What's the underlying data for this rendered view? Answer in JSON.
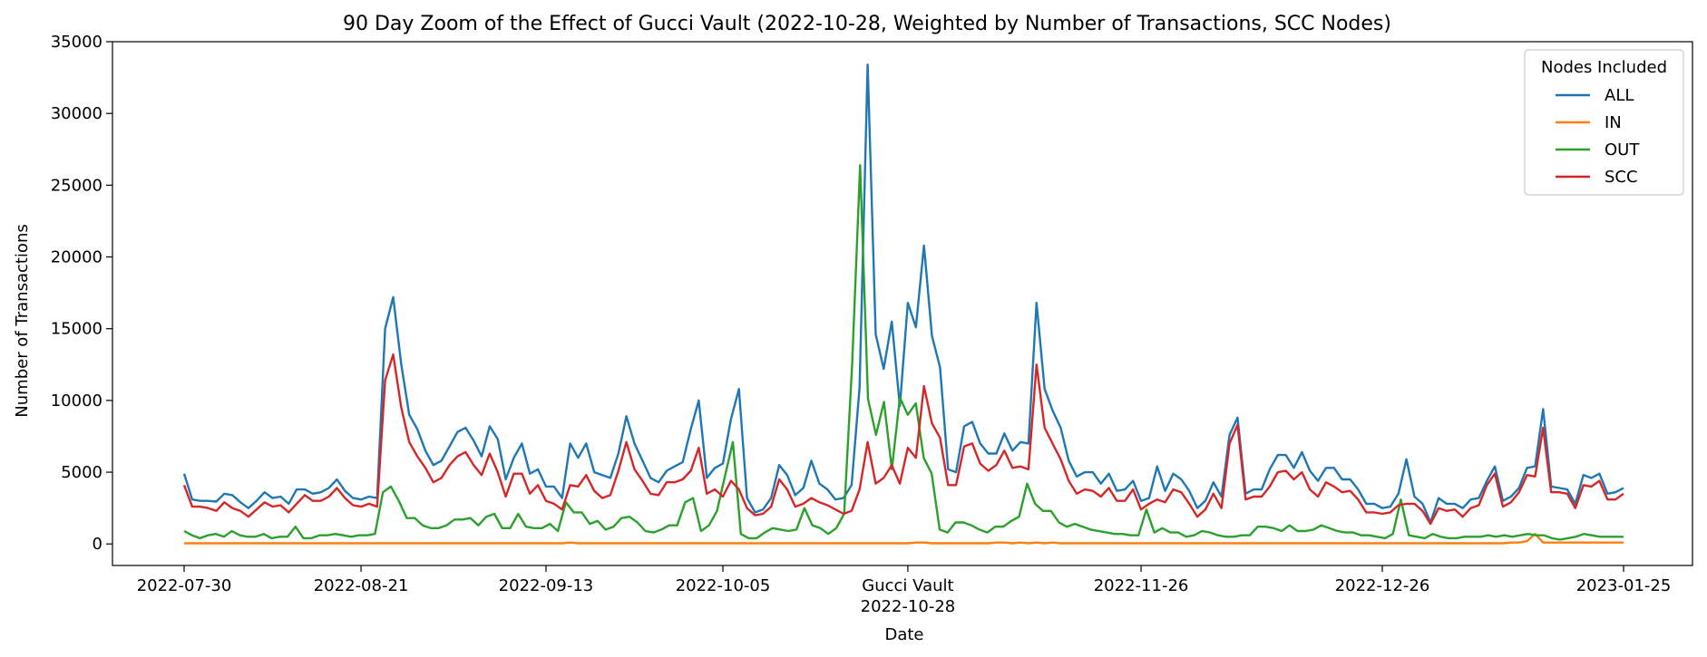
{
  "chart_data": {
    "type": "line",
    "title": "90 Day Zoom of the Effect of Gucci Vault (2022-10-28, Weighted by Number of Transactions, SCC Nodes)",
    "xlabel": "Date",
    "ylabel": "Number of Transactions",
    "ylim": [
      -1500,
      35000
    ],
    "yticks": [
      0,
      5000,
      10000,
      15000,
      20000,
      25000,
      30000,
      35000
    ],
    "x_start": "2022-07-30",
    "x_end": "2023-01-25",
    "xticks": [
      {
        "date": "2022-07-30",
        "label": "2022-07-30"
      },
      {
        "date": "2022-08-21",
        "label": "2022-08-21"
      },
      {
        "date": "2022-09-13",
        "label": "2022-09-13"
      },
      {
        "date": "2022-10-05",
        "label": "2022-10-05"
      },
      {
        "date": "2022-10-28",
        "label": "Gucci Vault",
        "label2": "2022-10-28"
      },
      {
        "date": "2022-11-26",
        "label": "2022-11-26"
      },
      {
        "date": "2022-12-26",
        "label": "2022-12-26"
      },
      {
        "date": "2023-01-25",
        "label": "2023-01-25"
      }
    ],
    "legend": {
      "title": "Nodes Included",
      "placement": "top-right"
    },
    "grid": false,
    "series": [
      {
        "name": "ALL",
        "color": "#1f77b4",
        "values": [
          4900,
          3100,
          3000,
          3000,
          2950,
          3500,
          3400,
          2900,
          2500,
          3000,
          3600,
          3200,
          3300,
          2800,
          3800,
          3800,
          3500,
          3600,
          3900,
          4500,
          3700,
          3200,
          3100,
          3300,
          3200,
          15000,
          17200,
          12500,
          9000,
          8000,
          6500,
          5500,
          5800,
          6800,
          7800,
          8100,
          7200,
          6100,
          8200,
          7300,
          4500,
          6000,
          7000,
          4900,
          5200,
          4000,
          4000,
          3200,
          7000,
          6000,
          7000,
          5000,
          4800,
          4600,
          6300,
          8900,
          7000,
          5800,
          4600,
          4300,
          5100,
          5400,
          5700,
          8000,
          10000,
          4600,
          5300,
          5600,
          8700,
          10800,
          3200,
          2200,
          2400,
          3200,
          5500,
          4800,
          3400,
          3900,
          5800,
          4200,
          3800,
          3100,
          3200,
          4100,
          10900,
          33400,
          14600,
          12200,
          15500,
          9600,
          16800,
          15100,
          20800,
          14500,
          12300,
          5200,
          5000,
          8200,
          8500,
          7000,
          6300,
          6300,
          7700,
          6500,
          7100,
          7000,
          16800,
          10800,
          9300,
          8100,
          5800,
          4700,
          5000,
          5000,
          4200,
          4900,
          3700,
          3800,
          4400,
          3000,
          3200,
          5400,
          3700,
          4900,
          4500,
          3700,
          2500,
          3000,
          4300,
          3300,
          7600,
          8800,
          3500,
          3800,
          3800,
          5200,
          6200,
          6200,
          5300,
          6400,
          5100,
          4400,
          5300,
          5300,
          4500,
          4500,
          3800,
          2800,
          2800,
          2500,
          2600,
          3500,
          5900,
          3300,
          2800,
          1500,
          3200,
          2800,
          2800,
          2500,
          3100,
          3200,
          4400,
          5400,
          3000,
          3300,
          3900,
          5300,
          5400,
          9400,
          4000,
          3900,
          3800,
          2800,
          4800,
          4600,
          4900,
          3500,
          3600,
          3900
        ]
      },
      {
        "name": "IN",
        "color": "#ff7f0e",
        "values": [
          50,
          50,
          50,
          50,
          50,
          50,
          50,
          50,
          50,
          50,
          50,
          50,
          50,
          50,
          50,
          50,
          50,
          50,
          50,
          50,
          50,
          50,
          50,
          50,
          50,
          50,
          50,
          50,
          50,
          50,
          50,
          50,
          50,
          50,
          50,
          50,
          50,
          50,
          50,
          50,
          50,
          50,
          50,
          50,
          50,
          50,
          50,
          50,
          100,
          50,
          50,
          50,
          50,
          50,
          50,
          50,
          50,
          50,
          50,
          50,
          50,
          50,
          50,
          50,
          50,
          50,
          50,
          50,
          50,
          50,
          50,
          50,
          50,
          50,
          50,
          50,
          50,
          50,
          50,
          50,
          50,
          50,
          50,
          50,
          50,
          50,
          50,
          50,
          50,
          50,
          50,
          100,
          100,
          50,
          50,
          50,
          50,
          50,
          50,
          50,
          50,
          100,
          100,
          50,
          100,
          50,
          100,
          50,
          100,
          50,
          50,
          50,
          50,
          50,
          50,
          50,
          50,
          50,
          50,
          50,
          50,
          50,
          50,
          50,
          50,
          50,
          50,
          50,
          50,
          50,
          50,
          50,
          50,
          50,
          50,
          50,
          50,
          50,
          50,
          50,
          50,
          50,
          50,
          50,
          50,
          50,
          50,
          50,
          50,
          50,
          50,
          50,
          50,
          50,
          50,
          50,
          50,
          50,
          50,
          50,
          50,
          50,
          50,
          50,
          50,
          100,
          100,
          200,
          700,
          100,
          100,
          100,
          100,
          100,
          100,
          100,
          100,
          100,
          100,
          100
        ]
      },
      {
        "name": "OUT",
        "color": "#2ca02c",
        "values": [
          900,
          600,
          400,
          600,
          700,
          500,
          900,
          600,
          500,
          500,
          700,
          400,
          500,
          500,
          1200,
          400,
          400,
          600,
          600,
          700,
          600,
          500,
          600,
          600,
          700,
          3600,
          4000,
          3000,
          1800,
          1800,
          1300,
          1100,
          1100,
          1300,
          1700,
          1700,
          1800,
          1300,
          1900,
          2100,
          1100,
          1100,
          2100,
          1200,
          1100,
          1100,
          1400,
          900,
          2900,
          2200,
          2200,
          1400,
          1600,
          1000,
          1200,
          1800,
          1900,
          1500,
          900,
          800,
          1000,
          1300,
          1300,
          2900,
          3200,
          900,
          1300,
          2300,
          4700,
          7100,
          700,
          400,
          400,
          800,
          1100,
          1000,
          900,
          1000,
          2500,
          1300,
          1100,
          700,
          1100,
          2100,
          12500,
          26400,
          10100,
          7600,
          9900,
          5200,
          10200,
          9000,
          9800,
          6000,
          4900,
          1000,
          800,
          1500,
          1500,
          1300,
          1000,
          800,
          1200,
          1200,
          1600,
          1900,
          4200,
          2800,
          2300,
          2300,
          1500,
          1200,
          1400,
          1200,
          1000,
          900,
          800,
          700,
          700,
          600,
          600,
          2400,
          800,
          1100,
          800,
          800,
          500,
          600,
          900,
          800,
          600,
          500,
          500,
          600,
          600,
          1200,
          1200,
          1100,
          900,
          1300,
          900,
          900,
          1000,
          1300,
          1100,
          900,
          800,
          800,
          600,
          600,
          500,
          400,
          700,
          3100,
          600,
          500,
          400,
          700,
          500,
          400,
          400,
          500,
          500,
          500,
          600,
          500,
          600,
          500,
          600,
          700,
          600,
          600,
          400,
          300,
          400,
          500,
          700,
          600,
          500,
          500,
          500,
          500
        ]
      },
      {
        "name": "SCC",
        "color": "#d62728",
        "values": [
          4100,
          2600,
          2600,
          2500,
          2300,
          2900,
          2500,
          2300,
          1900,
          2400,
          2900,
          2600,
          2700,
          2200,
          2800,
          3400,
          3000,
          3000,
          3300,
          3900,
          3200,
          2700,
          2600,
          2800,
          2600,
          11400,
          13200,
          9500,
          7100,
          6100,
          5300,
          4300,
          4600,
          5500,
          6100,
          6400,
          5500,
          4800,
          6300,
          5000,
          3300,
          4900,
          4900,
          3500,
          4100,
          3000,
          2800,
          2400,
          4100,
          4000,
          4800,
          3700,
          3200,
          3400,
          5100,
          7100,
          5200,
          4400,
          3500,
          3400,
          4300,
          4300,
          4500,
          5100,
          6700,
          3500,
          3800,
          3300,
          4400,
          3800,
          2500,
          2000,
          2100,
          2600,
          4500,
          3800,
          2600,
          2800,
          3200,
          2900,
          2700,
          2400,
          2100,
          2300,
          3800,
          7100,
          4200,
          4600,
          5500,
          4200,
          6700,
          6000,
          11000,
          8400,
          7400,
          4100,
          4100,
          6800,
          7000,
          5600,
          5100,
          5500,
          6500,
          5300,
          5400,
          5200,
          12500,
          8100,
          7000,
          5900,
          4400,
          3500,
          3800,
          3700,
          3300,
          3900,
          3000,
          3000,
          3800,
          2400,
          2800,
          3100,
          2900,
          3800,
          3600,
          2800,
          1900,
          2400,
          3500,
          2500,
          7000,
          8300,
          3100,
          3300,
          3300,
          4000,
          5000,
          5100,
          4500,
          5000,
          3800,
          3300,
          4300,
          4000,
          3600,
          3700,
          3100,
          2200,
          2200,
          2100,
          2200,
          2700,
          2800,
          2800,
          2300,
          1400,
          2500,
          2300,
          2400,
          1900,
          2500,
          2700,
          4100,
          4900,
          2600,
          2900,
          3600,
          4800,
          4700,
          8100,
          3600,
          3600,
          3500,
          2500,
          4100,
          4000,
          4400,
          3100,
          3100,
          3500
        ]
      }
    ]
  }
}
